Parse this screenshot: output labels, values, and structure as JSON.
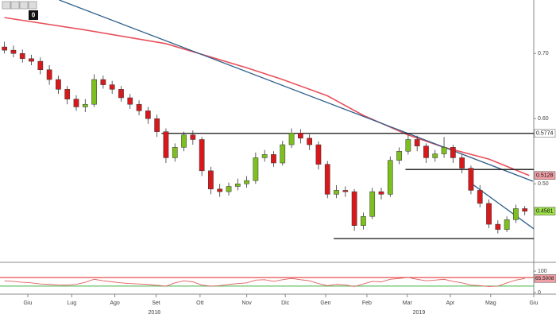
{
  "toolbar": {
    "count": 0
  },
  "chart_data": [
    {
      "type": "candlestick",
      "ylim": [
        0.382,
        0.782
      ],
      "yticks": [
        {
          "value": 0.5,
          "label": "0.50"
        },
        {
          "value": 0.6,
          "label": "0.60"
        },
        {
          "value": 0.7,
          "label": "0.70"
        }
      ],
      "xlim": [
        -0.5,
        59
      ],
      "xticks": [
        {
          "value": 2.6,
          "label": "Giu"
        },
        {
          "value": 7.5,
          "label": "Lug"
        },
        {
          "value": 12.3,
          "label": "Ago"
        },
        {
          "value": 16.9,
          "label": "Set"
        },
        {
          "value": 21.8,
          "label": "Ott"
        },
        {
          "value": 27,
          "label": "Nov"
        },
        {
          "value": 31.3,
          "label": "Dic"
        },
        {
          "value": 35.8,
          "label": "Gen"
        },
        {
          "value": 40.4,
          "label": "Feb"
        },
        {
          "value": 44.9,
          "label": "Mar"
        },
        {
          "value": 49.7,
          "label": "Apr"
        },
        {
          "value": 54.2,
          "label": "Mag"
        },
        {
          "value": 59,
          "label": "Giu"
        }
      ],
      "year_ticks": [
        {
          "value": 16.7,
          "label": "2018"
        },
        {
          "value": 46.2,
          "label": "2019"
        }
      ],
      "up_color": "#7cbf1e",
      "down_color": "#d7191c",
      "open": [
        0.71,
        0.705,
        0.7,
        0.692,
        0.688,
        0.675,
        0.66,
        0.645,
        0.63,
        0.618,
        0.622,
        0.66,
        0.652,
        0.645,
        0.632,
        0.622,
        0.612,
        0.6,
        0.58,
        0.54,
        0.556,
        0.575,
        0.568,
        0.52,
        0.492,
        0.488,
        0.496,
        0.5,
        0.505,
        0.54,
        0.545,
        0.532,
        0.56,
        0.578,
        0.57,
        0.56,
        0.53,
        0.484,
        0.49,
        0.488,
        0.436,
        0.45,
        0.488,
        0.484,
        0.536,
        0.55,
        0.568,
        0.558,
        0.54,
        0.546,
        0.556,
        0.54,
        0.524,
        0.49,
        0.47,
        0.438,
        0.43,
        0.445,
        0.462
      ],
      "high": [
        0.718,
        0.712,
        0.706,
        0.698,
        0.694,
        0.682,
        0.666,
        0.65,
        0.636,
        0.63,
        0.668,
        0.666,
        0.658,
        0.65,
        0.638,
        0.628,
        0.618,
        0.606,
        0.585,
        0.562,
        0.58,
        0.582,
        0.572,
        0.526,
        0.5,
        0.502,
        0.508,
        0.512,
        0.548,
        0.552,
        0.55,
        0.566,
        0.585,
        0.584,
        0.576,
        0.565,
        0.535,
        0.498,
        0.496,
        0.492,
        0.456,
        0.494,
        0.494,
        0.542,
        0.556,
        0.576,
        0.574,
        0.562,
        0.552,
        0.572,
        0.56,
        0.545,
        0.528,
        0.498,
        0.476,
        0.444,
        0.45,
        0.468,
        0.466
      ],
      "low": [
        0.7,
        0.694,
        0.686,
        0.682,
        0.668,
        0.652,
        0.638,
        0.622,
        0.612,
        0.61,
        0.618,
        0.646,
        0.638,
        0.626,
        0.615,
        0.605,
        0.592,
        0.572,
        0.532,
        0.534,
        0.55,
        0.56,
        0.512,
        0.484,
        0.48,
        0.482,
        0.49,
        0.494,
        0.5,
        0.534,
        0.526,
        0.528,
        0.555,
        0.562,
        0.552,
        0.522,
        0.478,
        0.478,
        0.48,
        0.428,
        0.43,
        0.446,
        0.476,
        0.48,
        0.53,
        0.545,
        0.55,
        0.532,
        0.534,
        0.54,
        0.532,
        0.516,
        0.484,
        0.464,
        0.432,
        0.424,
        0.426,
        0.44,
        0.452
      ],
      "close": [
        0.705,
        0.7,
        0.692,
        0.688,
        0.675,
        0.66,
        0.645,
        0.63,
        0.618,
        0.622,
        0.66,
        0.652,
        0.645,
        0.632,
        0.622,
        0.612,
        0.6,
        0.58,
        0.54,
        0.556,
        0.575,
        0.568,
        0.52,
        0.492,
        0.488,
        0.496,
        0.5,
        0.505,
        0.54,
        0.545,
        0.532,
        0.56,
        0.578,
        0.57,
        0.56,
        0.53,
        0.484,
        0.49,
        0.488,
        0.436,
        0.45,
        0.488,
        0.484,
        0.536,
        0.55,
        0.568,
        0.558,
        0.54,
        0.546,
        0.556,
        0.54,
        0.524,
        0.49,
        0.47,
        0.438,
        0.43,
        0.445,
        0.462,
        0.458
      ],
      "moving_average": {
        "color": "#e8505b",
        "x": [
          0,
          9,
          18,
          27,
          31,
          36,
          40,
          45,
          49,
          54,
          58.5
        ],
        "values": [
          0.755,
          0.736,
          0.715,
          0.678,
          0.66,
          0.635,
          0.605,
          0.575,
          0.556,
          0.538,
          0.5128
        ]
      },
      "trend_lines": [
        {
          "color": "#2f5f8a",
          "x": [
            6.1,
            58.9
          ],
          "values": [
            0.782,
            0.504
          ]
        },
        {
          "color": "#2f5f8a",
          "x": [
            51.7,
            59
          ],
          "values": [
            0.504,
            0.431
          ]
        },
        {
          "color": "#111111",
          "x": [
            17.5,
            59
          ],
          "values": [
            0.5774,
            0.5774
          ]
        },
        {
          "color": "#111111",
          "x": [
            44.7,
            59
          ],
          "values": [
            0.522,
            0.522
          ]
        },
        {
          "color": "#111111",
          "x": [
            36.7,
            59
          ],
          "values": [
            0.416,
            0.416
          ]
        }
      ],
      "price_labels": [
        {
          "value": 0.5774,
          "label": "0.5774",
          "color": "#ffffff"
        },
        {
          "value": 0.5128,
          "label": "0.5128",
          "color": "#f0a0a6"
        },
        {
          "value": 0.4581,
          "label": "0.4581",
          "color": "#9ee04a"
        }
      ]
    },
    {
      "type": "line",
      "ylim": [
        0,
        100
      ],
      "yticks": [
        100,
        0
      ],
      "xlim": [
        -0.5,
        59
      ],
      "color": "#e06060",
      "levels": [
        {
          "value": 70,
          "color": "#e02020"
        },
        {
          "value": 30,
          "color": "#3cb040"
        }
      ],
      "label_color": "#f0a0a6",
      "values": [
        55,
        52,
        48,
        45,
        40,
        38,
        36,
        35,
        38,
        48,
        62,
        55,
        50,
        45,
        42,
        40,
        38,
        34,
        30,
        45,
        55,
        50,
        35,
        30,
        32,
        38,
        42,
        45,
        58,
        60,
        52,
        60,
        66,
        60,
        55,
        42,
        32,
        38,
        36,
        28,
        40,
        52,
        50,
        62,
        66,
        70,
        62,
        55,
        58,
        62,
        52,
        45,
        35,
        32,
        28,
        30,
        45,
        58,
        65.5008
      ]
    }
  ]
}
